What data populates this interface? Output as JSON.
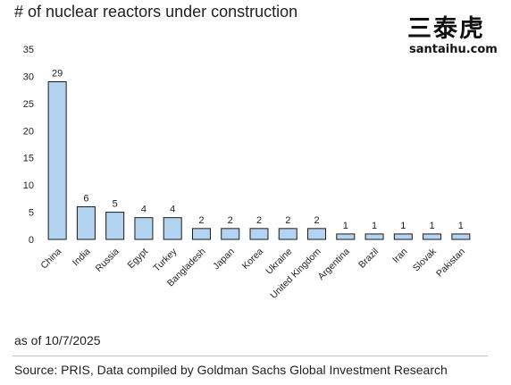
{
  "chart_data": {
    "type": "bar",
    "title": "# of nuclear reactors under construction",
    "categories": [
      "China",
      "India",
      "Russia",
      "Egypt",
      "Turkey",
      "Bangladesh",
      "Japan",
      "Korea",
      "Ukraine",
      "United Kingdom",
      "Argentina",
      "Brazil",
      "Iran",
      "Slovak",
      "Pakistan"
    ],
    "values": [
      29,
      6,
      5,
      4,
      4,
      2,
      2,
      2,
      2,
      2,
      1,
      1,
      1,
      1,
      1
    ],
    "data_labels": [
      "29",
      "6",
      "5",
      "4",
      "4",
      "2",
      "2",
      "2",
      "2",
      "2",
      "1",
      "1",
      "1",
      "1",
      "1"
    ],
    "ylim": [
      0,
      35
    ],
    "yticks": [
      0,
      5,
      10,
      15,
      20,
      25,
      30,
      35
    ],
    "ytick_labels": [
      "0",
      "5",
      "10",
      "15",
      "20",
      "25",
      "30",
      "35"
    ],
    "xlabel": "",
    "ylabel": "",
    "grid": false,
    "legend": "none",
    "bar_color": "#b3d4f0",
    "bar_edge_color": "#1a1a1a"
  },
  "watermark": {
    "chinese": "三泰虎",
    "site": "santaihu.com"
  },
  "footer": {
    "as_of": "as of 10/7/2025",
    "source": "Source: PRIS, Data compiled by Goldman Sachs Global Investment Research"
  }
}
